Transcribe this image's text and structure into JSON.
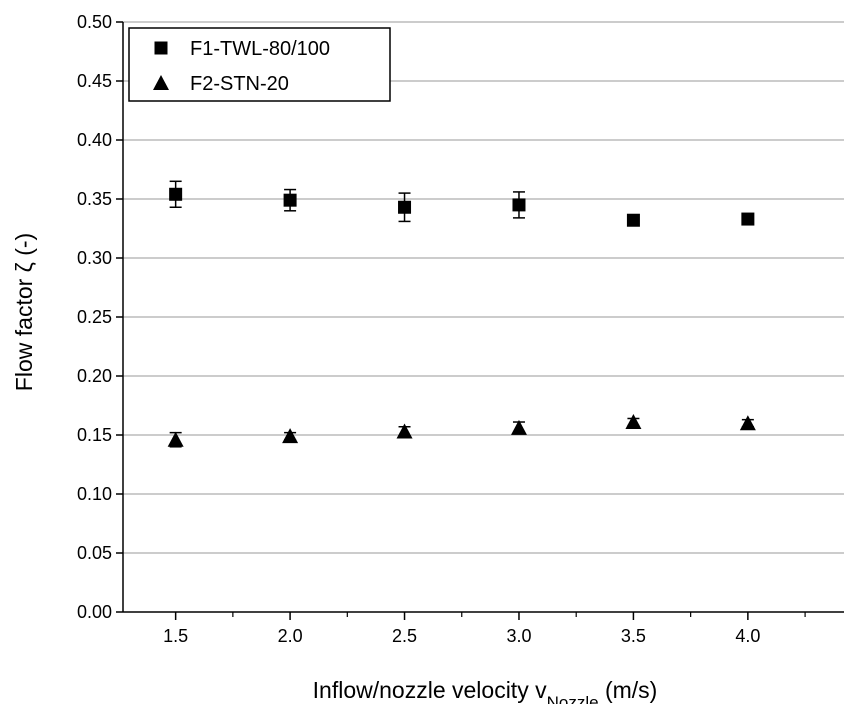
{
  "chart_data": {
    "type": "scatter",
    "title": "",
    "xlabel": "Inflow/nozzle velocity v",
    "xlabel_subscript": "Nozzle",
    "xlabel_unit": " (m/s)",
    "ylabel": "Flow factor ζ (-)",
    "xlim": [
      1.27,
      4.42
    ],
    "ylim": [
      0,
      0.5
    ],
    "x_major_ticks": [
      1.5,
      2.0,
      2.5,
      3.0,
      3.5,
      4.0
    ],
    "x_tick_labels": [
      "1.5",
      "2.0",
      "2.5",
      "3.0",
      "3.5",
      "4.0"
    ],
    "x_minor_ticks": [
      1.75,
      2.25,
      2.75,
      3.25,
      3.75,
      4.25
    ],
    "y_ticks": [
      0,
      0.05,
      0.1,
      0.15,
      0.2,
      0.25,
      0.3,
      0.35,
      0.4,
      0.45,
      0.5
    ],
    "y_tick_labels": [
      "0.00",
      "0.05",
      "0.10",
      "0.15",
      "0.20",
      "0.25",
      "0.30",
      "0.35",
      "0.40",
      "0.45",
      "0.50"
    ],
    "grid": "horizontal",
    "legend_position": "top-left",
    "series": [
      {
        "name": "F1-TWL-80/100",
        "marker": "square",
        "color": "#000000",
        "x": [
          1.5,
          2.0,
          2.5,
          3.0,
          3.5,
          4.0
        ],
        "y": [
          0.354,
          0.349,
          0.343,
          0.345,
          0.332,
          0.333
        ],
        "err": [
          0.011,
          0.009,
          0.012,
          0.011,
          0.003,
          0.004
        ]
      },
      {
        "name": "F2-STN-20",
        "marker": "triangle",
        "color": "#000000",
        "x": [
          1.5,
          2.0,
          2.5,
          3.0,
          3.5,
          4.0
        ],
        "y": [
          0.146,
          0.149,
          0.153,
          0.156,
          0.161,
          0.16
        ],
        "err": [
          0.006,
          0.003,
          0.004,
          0.005,
          0.003,
          0.003
        ]
      }
    ]
  }
}
